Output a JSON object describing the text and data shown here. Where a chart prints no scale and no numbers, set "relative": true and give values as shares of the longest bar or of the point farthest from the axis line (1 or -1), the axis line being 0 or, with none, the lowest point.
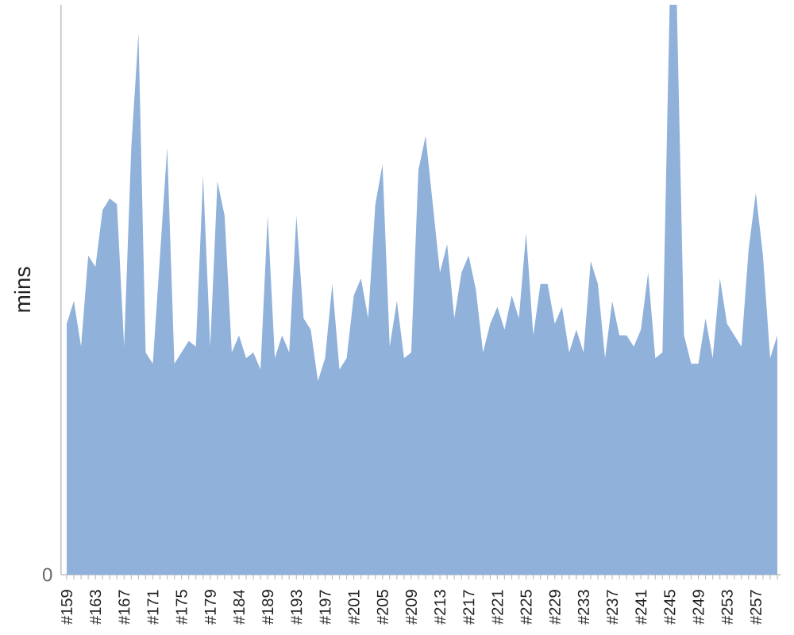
{
  "chart_data": {
    "type": "area",
    "ylabel": "mins",
    "relative": true,
    "color": "#8fb1da",
    "annotations": [
      "0"
    ],
    "categories": [
      "#159",
      null,
      null,
      null,
      "#163",
      null,
      null,
      null,
      "#167",
      null,
      null,
      null,
      "#171",
      null,
      null,
      null,
      "#175",
      null,
      null,
      null,
      "#179",
      null,
      null,
      null,
      "#184",
      null,
      null,
      null,
      "#189",
      null,
      null,
      null,
      "#193",
      null,
      null,
      null,
      "#197",
      null,
      null,
      null,
      "#201",
      null,
      null,
      null,
      "#205",
      null,
      null,
      null,
      "#209",
      null,
      null,
      null,
      "#213",
      null,
      null,
      null,
      "#217",
      null,
      null,
      null,
      "#221",
      null,
      null,
      null,
      "#225",
      null,
      null,
      null,
      "#229",
      null,
      null,
      null,
      "#233",
      null,
      null,
      null,
      "#237",
      null,
      null,
      null,
      "#241",
      null,
      null,
      null,
      "#245",
      null,
      null,
      null,
      "#249",
      null,
      null,
      null,
      "#253",
      null,
      null,
      null,
      "#257",
      null,
      null,
      null
    ],
    "values": [
      0.44,
      0.48,
      0.4,
      0.56,
      0.54,
      0.64,
      0.66,
      0.65,
      0.4,
      0.75,
      0.95,
      0.39,
      0.37,
      0.56,
      0.75,
      0.37,
      0.39,
      0.41,
      0.4,
      0.7,
      0.4,
      0.69,
      0.63,
      0.39,
      0.42,
      0.38,
      0.39,
      0.36,
      0.63,
      0.38,
      0.42,
      0.39,
      0.63,
      0.45,
      0.43,
      0.34,
      0.38,
      0.51,
      0.36,
      0.38,
      0.49,
      0.52,
      0.45,
      0.65,
      0.72,
      0.4,
      0.48,
      0.38,
      0.39,
      0.71,
      0.77,
      0.65,
      0.53,
      0.58,
      0.45,
      0.53,
      0.56,
      0.5,
      0.39,
      0.44,
      0.47,
      0.43,
      0.49,
      0.45,
      0.6,
      0.42,
      0.51,
      0.51,
      0.44,
      0.47,
      0.39,
      0.43,
      0.39,
      0.55,
      0.51,
      0.38,
      0.48,
      0.42,
      0.42,
      0.4,
      0.43,
      0.53,
      0.38,
      0.39,
      1,
      1,
      0.42,
      0.37,
      0.37,
      0.45,
      0.38,
      0.52,
      0.44,
      0.42,
      0.4,
      0.57,
      0.67,
      0.56,
      0.38,
      0.42
    ]
  }
}
